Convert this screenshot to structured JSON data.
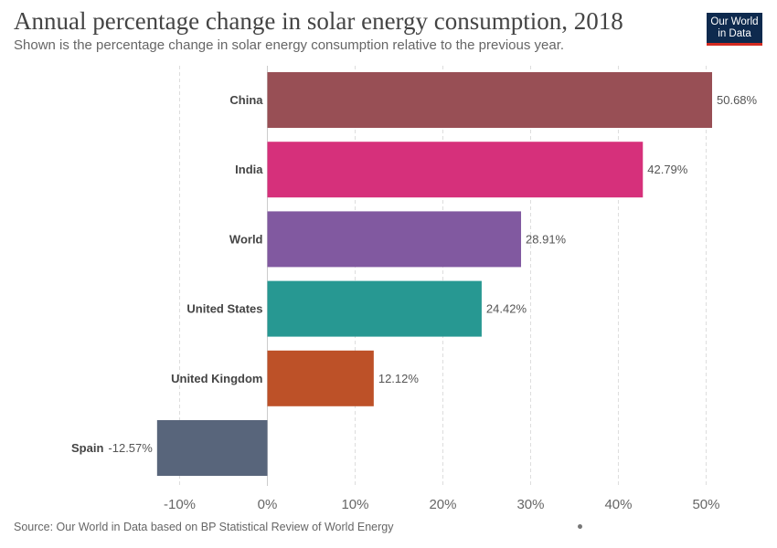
{
  "header": {
    "title": "Annual percentage change in solar energy consumption, 2018",
    "subtitle": "Shown is the percentage change in solar energy consumption relative to the previous year."
  },
  "logo": {
    "line1": "Our World",
    "line2": "in Data"
  },
  "footer": {
    "source": "Source: Our World in Data based on BP Statistical Review of World Energy"
  },
  "chart_data": {
    "type": "bar",
    "orientation": "horizontal",
    "title": "Annual percentage change in solar energy consumption, 2018",
    "subtitle": "Shown is the percentage change in solar energy consumption relative to the previous year.",
    "categories": [
      "China",
      "India",
      "World",
      "United States",
      "United Kingdom",
      "Spain"
    ],
    "values": [
      50.68,
      42.79,
      28.91,
      24.42,
      12.12,
      -12.57
    ],
    "value_labels": [
      "50.68%",
      "42.79%",
      "28.91%",
      "24.42%",
      "12.12%",
      "-12.57%"
    ],
    "colors": [
      "#984f55",
      "#d6307b",
      "#8159a0",
      "#279892",
      "#bd5128",
      "#58657b"
    ],
    "xlim": [
      -12.57,
      50.68
    ],
    "x_ticks": [
      -10,
      0,
      10,
      20,
      30,
      40,
      50
    ],
    "x_tick_labels": [
      "-10%",
      "0%",
      "10%",
      "20%",
      "30%",
      "40%",
      "50%"
    ],
    "grid": "vertical-dashed",
    "legend": "none",
    "source": "Source: Our World in Data based on BP Statistical Review of World Energy"
  }
}
